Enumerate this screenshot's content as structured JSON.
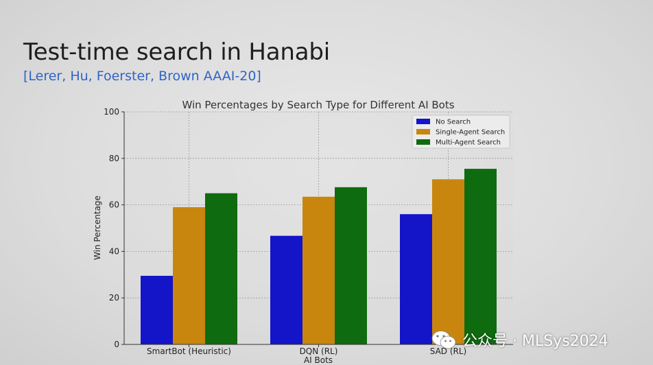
{
  "slide": {
    "title": "Test-time search in Hanabi",
    "subtitle": "[Lerer, Hu, Foerster, Brown AAAI-20]"
  },
  "watermark": {
    "text": "公众号 · MLSys2024",
    "icon": "wechat-icon"
  },
  "chart_data": {
    "type": "bar",
    "title": "Win Percentages by Search Type for Different AI Bots",
    "xlabel": "AI Bots",
    "ylabel": "Win Percentage",
    "categories": [
      "SmartBot (Heuristic)",
      "DQN (RL)",
      "SAD (RL)"
    ],
    "series": [
      {
        "name": "No Search",
        "values": [
          29.5,
          46.7,
          56.0
        ],
        "color": "#1414c8"
      },
      {
        "name": "Single-Agent Search",
        "values": [
          59.0,
          63.5,
          71.0
        ],
        "color": "#c8860f"
      },
      {
        "name": "Multi-Agent Search",
        "values": [
          65.0,
          67.6,
          75.5
        ],
        "color": "#0f6b0f"
      }
    ],
    "ylim": [
      0,
      100
    ],
    "yticks": [
      0,
      20,
      40,
      60,
      80,
      100
    ],
    "grid": true,
    "legend": "top-right"
  }
}
